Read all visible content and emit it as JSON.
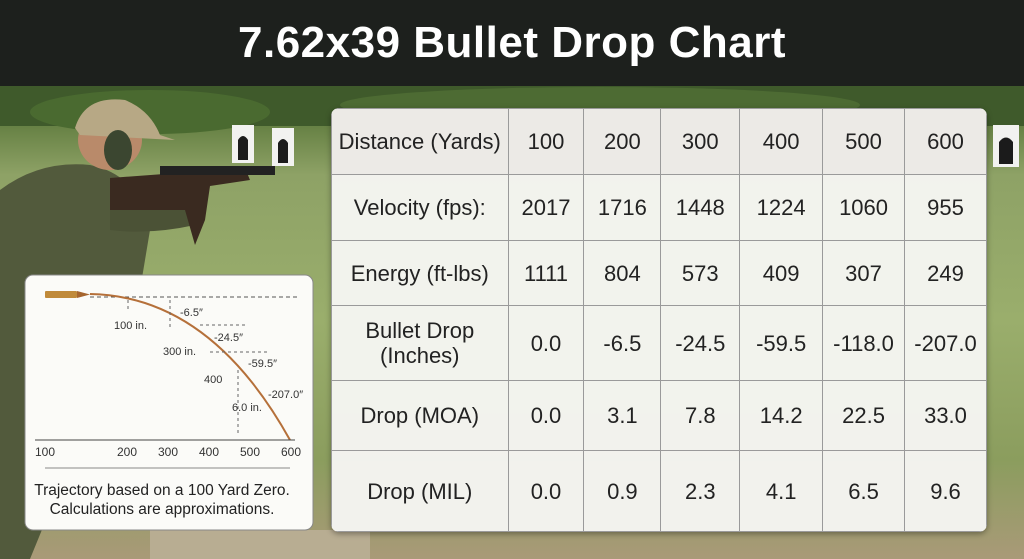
{
  "header": {
    "title": "7.62x39 Bullet Drop Chart"
  },
  "table": {
    "rows": [
      [
        "Distance (Yards)",
        "100",
        "200",
        "300",
        "400",
        "500",
        "600"
      ],
      [
        "Velocity (fps):",
        "2017",
        "1716",
        "1448",
        "1224",
        "1060",
        "955"
      ],
      [
        "Energy (ft-lbs)",
        "1111",
        "804",
        "573",
        "409",
        "307",
        "249"
      ],
      [
        "Bullet Drop (Inches)",
        "0.0",
        "-6.5",
        "-24.5",
        "-59.5",
        "-118.0",
        "-207.0"
      ],
      [
        "Drop (MOA)",
        "0.0",
        "3.1",
        "7.8",
        "14.2",
        "22.5",
        "33.0"
      ],
      [
        "Drop (MIL)",
        "0.0",
        "0.9",
        "2.3",
        "4.1",
        "6.5",
        "9.6"
      ]
    ]
  },
  "inset": {
    "labels": [
      "-6.5″",
      "100 in.",
      "-24.5″",
      "300 in.",
      "-59.5″",
      "400",
      "-207.0″",
      "6.0 in."
    ],
    "axis_labels": [
      "100",
      "200",
      "300",
      "400",
      "500",
      "600"
    ],
    "caption": [
      "Trajectory based on a 100 Yard Zero.",
      "Calculations are approximations."
    ]
  }
}
